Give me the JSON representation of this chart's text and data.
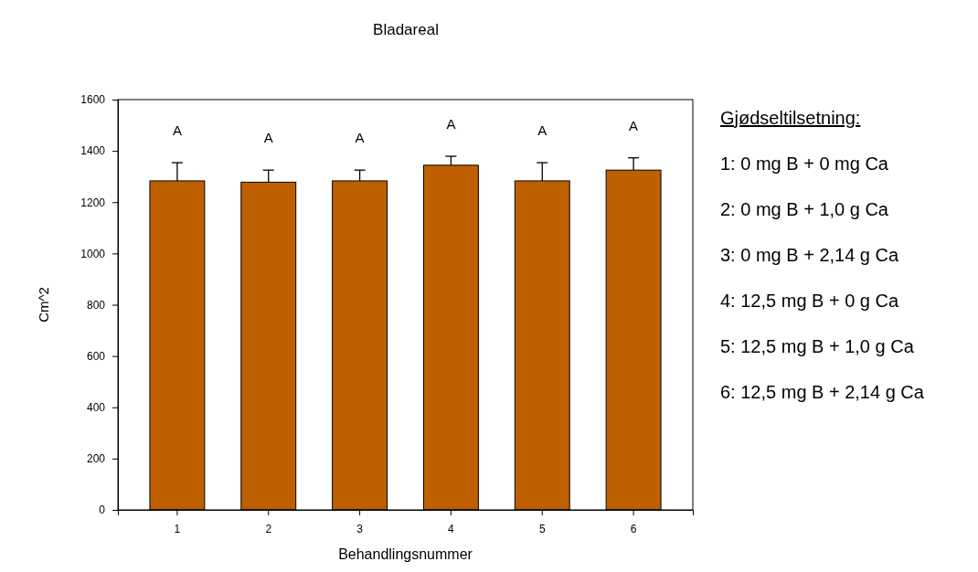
{
  "chart_data": {
    "type": "bar",
    "title": "Bladareal",
    "xlabel": "Behandlingsnummer",
    "ylabel": "Cm^2",
    "categories": [
      "1",
      "2",
      "3",
      "4",
      "5",
      "6"
    ],
    "values": [
      1283,
      1278,
      1283,
      1344,
      1283,
      1325
    ],
    "errors": [
      [
        1283,
        1354
      ],
      [
        1278,
        1325
      ],
      [
        1283,
        1325
      ],
      [
        1344,
        1379
      ],
      [
        1283,
        1354
      ],
      [
        1325,
        1373
      ]
    ],
    "color": "#bf6000",
    "ylim": [
      0,
      1600
    ],
    "yticks": [
      0,
      200,
      400,
      600,
      800,
      1000,
      1200,
      1400,
      1600
    ],
    "annotations": [
      "A",
      "A",
      "A",
      "A",
      "A",
      "A",
      "Gjødseltilsetning:",
      "1: 0 mg B + 0 mg Ca",
      "2: 0 mg B + 1,0 g Ca",
      "3: 0 mg B + 2,14 g Ca",
      "4: 12,5 mg B + 0 g Ca",
      "5: 12,5 mg B + 1,0 g Ca",
      "6: 12,5 mg B + 2,14 g Ca"
    ],
    "grid": false
  }
}
